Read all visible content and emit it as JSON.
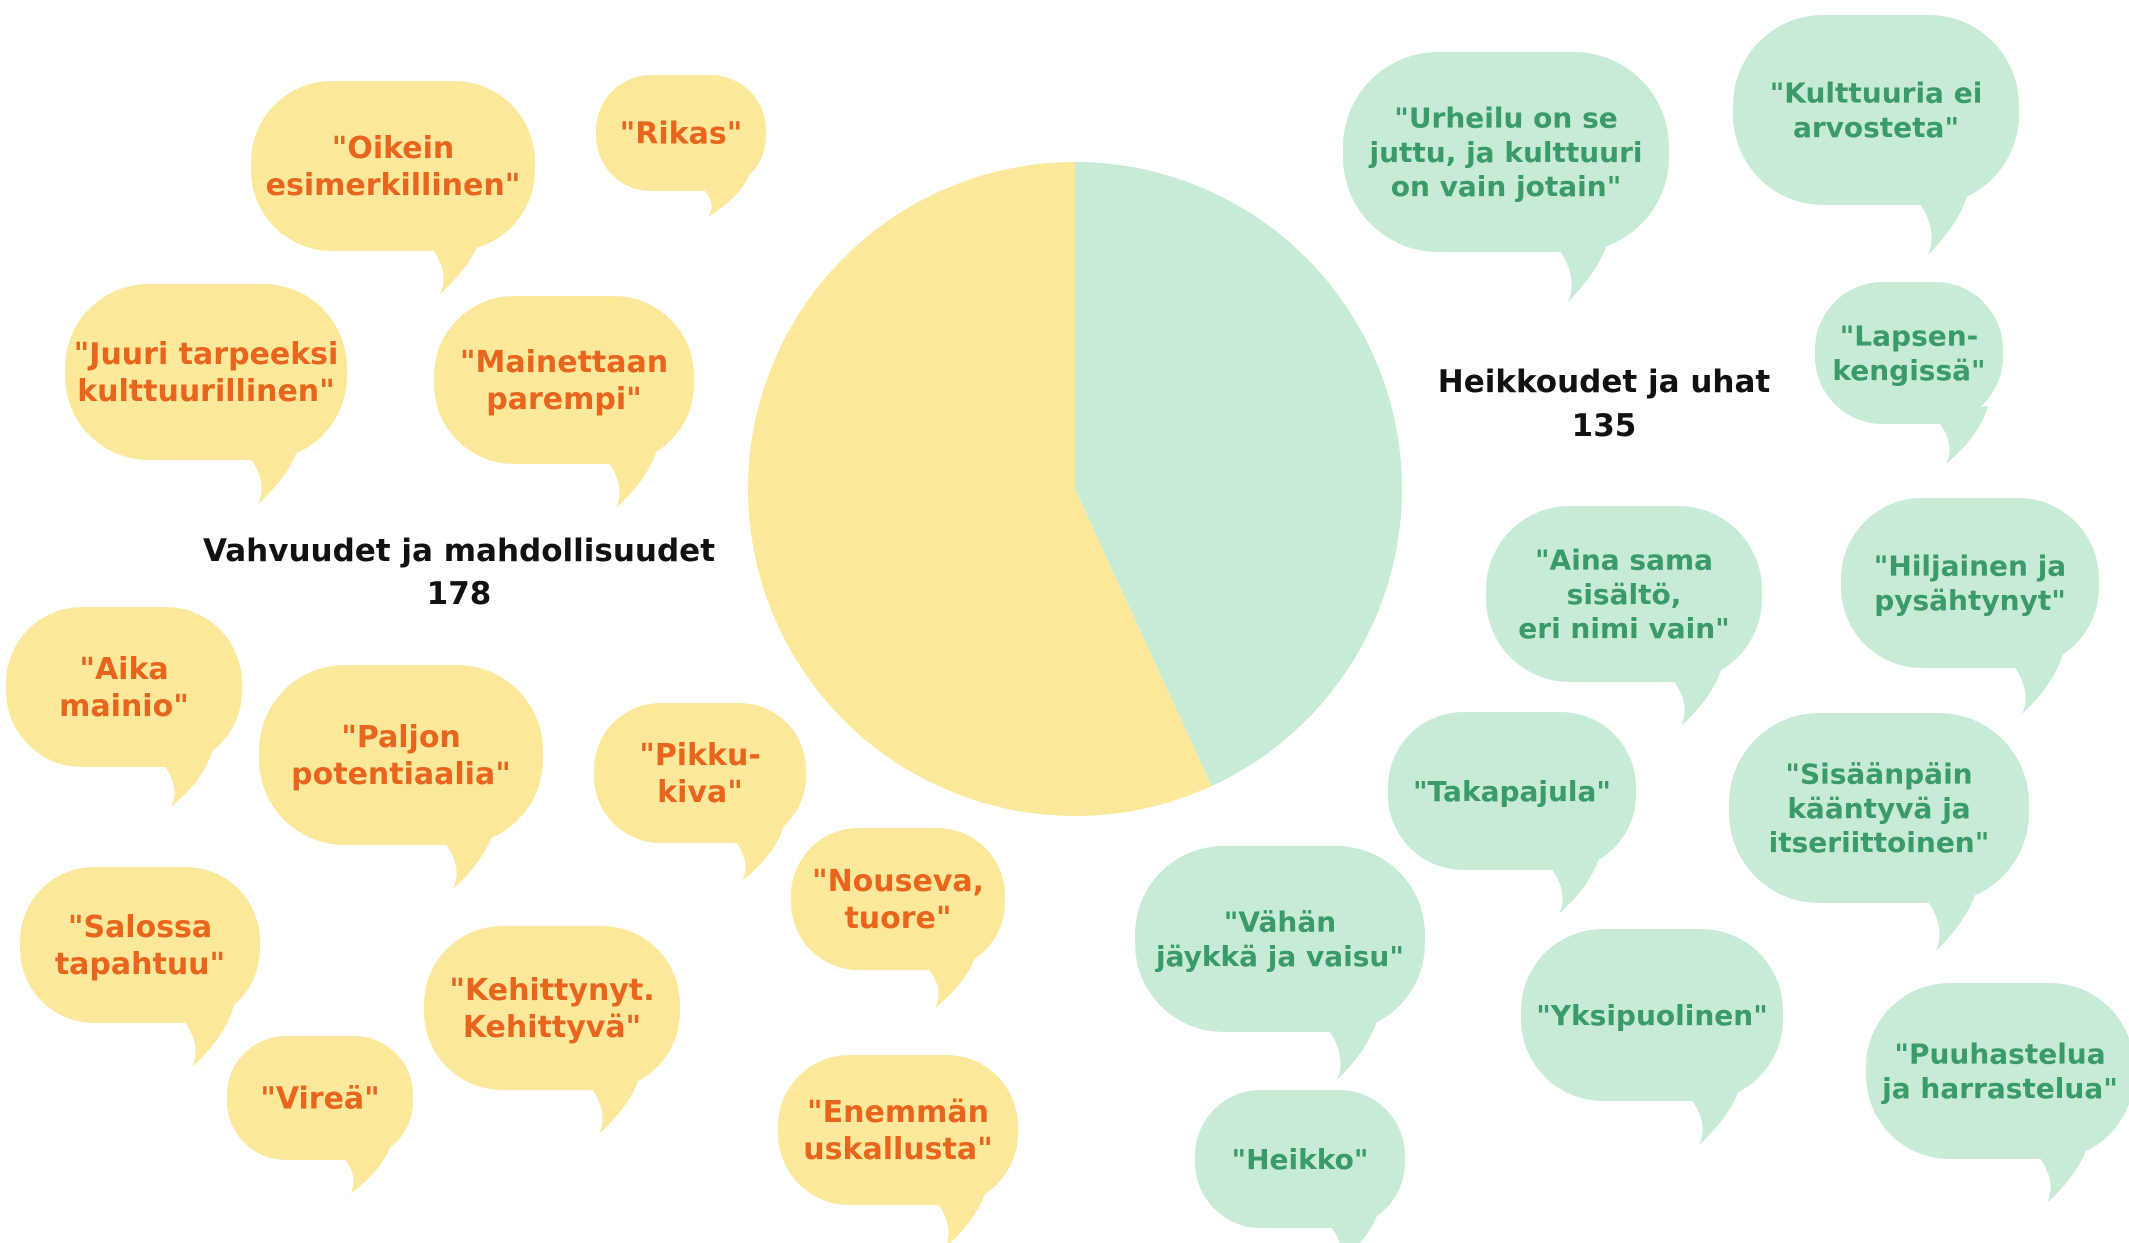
{
  "chart_data": {
    "type": "pie",
    "slices": [
      {
        "label": "Heikkoudet ja uhat",
        "value": 135,
        "color": "#c7ebd5"
      },
      {
        "label": "Vahvuudet ja mahdollisuudet",
        "value": 178,
        "color": "#fbe89b"
      }
    ]
  },
  "bubbles": {
    "positive": {
      "fill": "#fbe89b",
      "text_color": "#e8651e",
      "items": [
        [
          "\"Oikein",
          "esimerkillinen\""
        ],
        [
          "\"Rikas\""
        ],
        [
          "\"Juuri tarpeeksi",
          "kulttuurillinen\""
        ],
        [
          "\"Mainettaan",
          "parempi\""
        ],
        [
          "\"Aika",
          "mainio\""
        ],
        [
          "\"Paljon",
          "potentiaalia\""
        ],
        [
          "\"Pikku-",
          "kiva\""
        ],
        [
          "\"Nouseva,",
          "tuore\""
        ],
        [
          "\"Salossa",
          "tapahtuu\""
        ],
        [
          "\"Kehittynyt.",
          "Kehittyvä\""
        ],
        [
          "\"Vireä\""
        ],
        [
          "\"Enemmän",
          "uskallusta\""
        ]
      ]
    },
    "negative": {
      "fill": "#c7ebd5",
      "text_color": "#3a9a6a",
      "items": [
        [
          "\"Urheilu on se",
          "juttu, ja kulttuuri",
          "on vain jotain\""
        ],
        [
          "\"Kulttuuria ei",
          "arvosteta\""
        ],
        [
          "\"Lapsen-",
          "kengissä\""
        ],
        [
          "\"Aina sama",
          "sisältö,",
          "eri nimi vain\""
        ],
        [
          "\"Hiljainen ja",
          "pysähtynyt\""
        ],
        [
          "\"Takapajula\""
        ],
        [
          "\"Sisäänpäin",
          "kääntyvä ja",
          "itseriittoinen\""
        ],
        [
          "\"Vähän",
          "jäykkä ja vaisu\""
        ],
        [
          "\"Yksipuolinen\""
        ],
        [
          "\"Puuhastelua",
          "ja harrastelua\""
        ],
        [
          "\"Heikko\""
        ]
      ]
    }
  }
}
